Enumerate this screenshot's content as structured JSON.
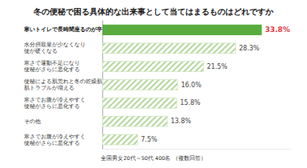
{
  "chart_data": {
    "type": "bar",
    "title": "冬の便秘で困る具体的な出来事として当てはまるものはどれですか",
    "categories": [
      "寒いトイレで長時間座るのが辛い",
      "水分摂取量が少なくなり\n便が硬くなる",
      "寒さで運動不足になり\n便秘がさらに悪化する",
      "便秘による肌荒れと冬の乾燥肌により\n肌トラブルが増える",
      "寒さでお腹が冷えやすく\n便秘がさらに悪化する",
      "その他",
      "寒さでお腹が冷えやすく\n便秘がさらに悪化する"
    ],
    "values": [
      33.8,
      28.3,
      21.5,
      16.0,
      15.8,
      13.8,
      7.5
    ],
    "value_labels": [
      "33.8%",
      "28.3%",
      "21.5%",
      "16.0%",
      "15.8%",
      "13.8%",
      "7.5%"
    ],
    "colors": [
      "#5aab3e",
      "#b3d89b",
      "#b3d89b",
      "#b3d89b",
      "#b3d89b",
      "#b3d89b",
      "#b3d89b"
    ],
    "orientation": "horizontal",
    "data_labels": true,
    "tick_labels": "y",
    "grid": false,
    "xlim": [
      0,
      40
    ],
    "annotation": "全国男女20代～50代 400名 （複数回答）"
  }
}
